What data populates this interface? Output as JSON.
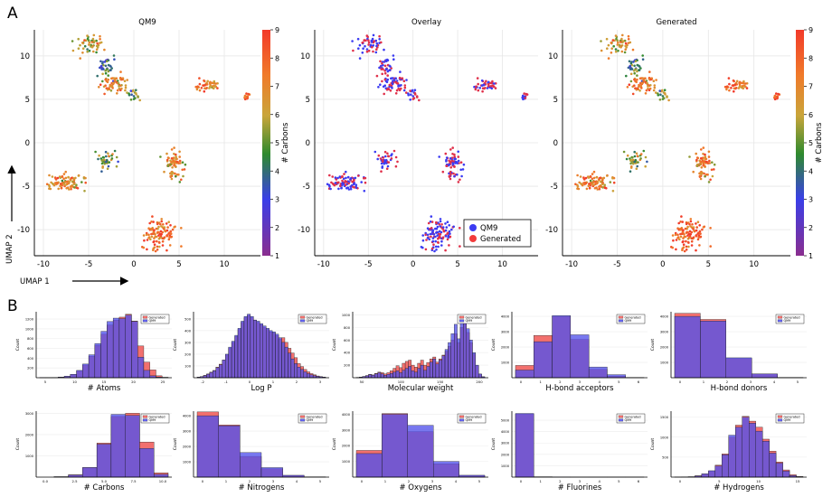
{
  "panel_labels": {
    "a": "A",
    "b": "B"
  },
  "umap": {
    "x_axis_label": "UMAP 1",
    "y_axis_label": "UMAP 2",
    "x_ticks": [
      -10,
      -5,
      0,
      5,
      10
    ],
    "y_ticks": [
      -10,
      -5,
      0,
      5,
      10
    ],
    "colorbar_label": "# Carbons",
    "colorbar_ticks": [
      1,
      2,
      3,
      4,
      5,
      6,
      7,
      8,
      9
    ],
    "colorscale": [
      "#8a2e8f",
      "#3a3fe8",
      "#2e8a2e",
      "#c9a53a",
      "#f07a2a",
      "#f23a2a"
    ]
  },
  "chart_data": [
    {
      "type": "scatter",
      "title": "QM9",
      "xlim": [
        -11,
        14
      ],
      "ylim": [
        -13,
        13
      ],
      "color_by": "# Carbons",
      "clusters": [
        {
          "x": -5,
          "y": 11.3,
          "value": 6
        },
        {
          "x": -3,
          "y": 8.6,
          "value": 4
        },
        {
          "x": -2,
          "y": 6.8,
          "value": 7
        },
        {
          "x": 0,
          "y": 5.5,
          "value": 5
        },
        {
          "x": 8,
          "y": 6.5,
          "value": 7
        },
        {
          "x": 12.5,
          "y": 5.3,
          "value": 8
        },
        {
          "x": -3,
          "y": -2,
          "value": 5
        },
        {
          "x": -7.5,
          "y": -4.5,
          "value": 7
        },
        {
          "x": 4.5,
          "y": -2.5,
          "value": 7
        },
        {
          "x": 2.8,
          "y": -10.5,
          "value": 8
        }
      ]
    },
    {
      "type": "scatter",
      "title": "Overlay",
      "xlim": [
        -11,
        14
      ],
      "ylim": [
        -13,
        13
      ],
      "legend": [
        "QM9",
        "Generated"
      ],
      "legend_colors": [
        "#3b3bf2",
        "#f23b3b"
      ],
      "legend_position": "bottom-right"
    },
    {
      "type": "scatter",
      "title": "Generated",
      "xlim": [
        -11,
        14
      ],
      "ylim": [
        -13,
        13
      ],
      "color_by": "# Carbons"
    },
    {
      "type": "bar",
      "xlabel": "# Atoms",
      "ylabel": "Count",
      "legend": [
        "Generated",
        "QM9"
      ],
      "ylim": [
        0,
        1350
      ],
      "y_ticks": [
        200,
        400,
        600,
        800,
        1000,
        1200
      ],
      "x_ticks": [
        "5",
        "10",
        "15",
        "20",
        "25"
      ],
      "qm9": [
        2,
        3,
        6,
        12,
        30,
        70,
        150,
        280,
        470,
        700,
        950,
        1150,
        1220,
        1210,
        1280,
        1150,
        420,
        150,
        40,
        15,
        5
      ],
      "generated": [
        2,
        3,
        6,
        12,
        28,
        65,
        140,
        260,
        440,
        660,
        890,
        1080,
        1180,
        1240,
        1300,
        1160,
        650,
        320,
        160,
        40,
        10
      ]
    },
    {
      "type": "bar",
      "xlabel": "Log P",
      "ylabel": "Count",
      "legend": [
        "Generated",
        "QM9"
      ],
      "ylim": [
        0,
        560
      ],
      "y_ticks": [
        100,
        200,
        300,
        400,
        500
      ],
      "x_ticks": [
        "-2",
        "-1",
        "0",
        "1",
        "2",
        "3"
      ],
      "qm9": [
        5,
        10,
        18,
        30,
        45,
        60,
        85,
        110,
        150,
        200,
        260,
        310,
        360,
        420,
        480,
        520,
        540,
        520,
        490,
        480,
        460,
        440,
        420,
        400,
        390,
        370,
        340,
        300,
        260,
        210,
        160,
        120,
        90,
        70,
        50,
        35,
        25,
        18,
        12,
        8,
        5
      ],
      "generated": [
        5,
        10,
        20,
        32,
        48,
        62,
        90,
        115,
        150,
        195,
        250,
        300,
        350,
        410,
        470,
        510,
        530,
        510,
        490,
        470,
        450,
        430,
        410,
        390,
        380,
        360,
        330,
        340,
        300,
        250,
        210,
        170,
        120,
        95,
        70,
        50,
        35,
        25,
        15,
        10,
        6
      ]
    },
    {
      "type": "bar",
      "xlabel": "Molecular weight",
      "ylabel": "Count",
      "legend": [
        "Generated",
        "QM9"
      ],
      "ylim": [
        0,
        1050
      ],
      "y_ticks": [
        200,
        400,
        600,
        800,
        1000
      ],
      "x_ticks": [
        "50",
        "100",
        "150",
        "200"
      ],
      "qm9": [
        5,
        10,
        20,
        30,
        50,
        40,
        60,
        80,
        60,
        40,
        55,
        70,
        90,
        110,
        80,
        120,
        150,
        180,
        110,
        90,
        150,
        200,
        120,
        180,
        250,
        300,
        220,
        280,
        350,
        450,
        560,
        700,
        850,
        620,
        950,
        1000,
        780,
        600,
        400,
        200,
        60,
        15
      ],
      "generated": [
        5,
        10,
        20,
        35,
        55,
        45,
        70,
        90,
        80,
        60,
        80,
        110,
        150,
        190,
        160,
        230,
        260,
        280,
        200,
        170,
        230,
        280,
        200,
        240,
        300,
        330,
        250,
        300,
        360,
        420,
        500,
        600,
        700,
        560,
        800,
        900,
        720,
        560,
        380,
        190,
        55,
        15
      ]
    },
    {
      "type": "bar",
      "xlabel": "H-bond acceptors",
      "ylabel": "Count",
      "legend": [
        "Generated",
        "QM9"
      ],
      "ylim": [
        0,
        4300
      ],
      "y_ticks": [
        1000,
        2000,
        3000,
        4000
      ],
      "x_ticks": [
        "0",
        "1",
        "2",
        "3",
        "4",
        "5",
        "6"
      ],
      "qm9": [
        500,
        2350,
        4050,
        2800,
        700,
        200,
        20
      ],
      "generated": [
        800,
        2750,
        4000,
        2500,
        550,
        110,
        15
      ]
    },
    {
      "type": "bar",
      "xlabel": "H-bond donors",
      "ylabel": "Count",
      "legend": [
        "Generated",
        "QM9"
      ],
      "ylim": [
        0,
        4300
      ],
      "y_ticks": [
        1000,
        2000,
        3000,
        4000
      ],
      "x_ticks": [
        "0",
        "1",
        "2",
        "3",
        "4",
        "5"
      ],
      "qm9": [
        4000,
        3700,
        1300,
        250,
        20
      ],
      "generated": [
        4200,
        3800,
        1250,
        240,
        20
      ]
    },
    {
      "type": "bar",
      "xlabel": "# Carbons",
      "ylabel": "Count",
      "legend": [
        "Generated",
        "QM9"
      ],
      "ylim": [
        0,
        3100
      ],
      "y_ticks": [
        1000,
        2000,
        3000
      ],
      "x_ticks": [
        "0.0",
        "2.5",
        "5.0",
        "7.5",
        "10.0"
      ],
      "qm9": [
        0,
        20,
        100,
        450,
        1550,
        2950,
        2900,
        1350,
        130
      ],
      "generated": [
        0,
        20,
        110,
        450,
        1600,
        2850,
        3000,
        1650,
        200
      ]
    },
    {
      "type": "bar",
      "xlabel": "# Nitrogens",
      "ylabel": "Count",
      "legend": [
        "Generated",
        "QM9"
      ],
      "ylim": [
        0,
        4300
      ],
      "y_ticks": [
        1000,
        2000,
        3000,
        4000
      ],
      "x_ticks": [
        "0",
        "1",
        "2",
        "3",
        "4",
        "5"
      ],
      "qm9": [
        4000,
        3350,
        1600,
        620,
        120,
        20
      ],
      "generated": [
        4250,
        3400,
        1350,
        550,
        110,
        20
      ]
    },
    {
      "type": "bar",
      "xlabel": "# Oxygens",
      "ylabel": "Count",
      "legend": [
        "Generated",
        "QM9"
      ],
      "ylim": [
        0,
        4200
      ],
      "y_ticks": [
        1000,
        2000,
        3000,
        4000
      ],
      "x_ticks": [
        "0",
        "1",
        "2",
        "3",
        "4",
        "5"
      ],
      "qm9": [
        1500,
        4000,
        3300,
        1000,
        120
      ],
      "generated": [
        1700,
        4050,
        2900,
        850,
        100
      ]
    },
    {
      "type": "bar",
      "xlabel": "# Fluorines",
      "ylabel": "Count",
      "legend": [
        "Generated",
        "QM9"
      ],
      "ylim": [
        0,
        5800
      ],
      "y_ticks": [
        1000,
        2000,
        3000,
        4000,
        5000
      ],
      "x_ticks": [
        "0",
        "1",
        "2",
        "3",
        "4",
        "5",
        "6"
      ],
      "qm9": [
        5600,
        30,
        10,
        5,
        5,
        5,
        5
      ],
      "generated": [
        5550,
        30,
        10,
        5,
        5,
        5,
        5
      ]
    },
    {
      "type": "bar",
      "xlabel": "# Hydrogens",
      "ylabel": "Count",
      "legend": [
        "Generated",
        "QM9"
      ],
      "ylim": [
        0,
        1650
      ],
      "y_ticks": [
        500,
        1000,
        1500
      ],
      "x_ticks": [
        "0",
        "5",
        "10",
        "15"
      ],
      "qm9": [
        2,
        5,
        10,
        30,
        80,
        160,
        280,
        560,
        1050,
        1250,
        1500,
        1350,
        1150,
        900,
        600,
        350,
        150,
        40,
        10
      ],
      "generated": [
        2,
        5,
        10,
        35,
        80,
        150,
        300,
        580,
        1000,
        1300,
        1520,
        1400,
        1250,
        950,
        650,
        380,
        180,
        60,
        15
      ]
    }
  ]
}
